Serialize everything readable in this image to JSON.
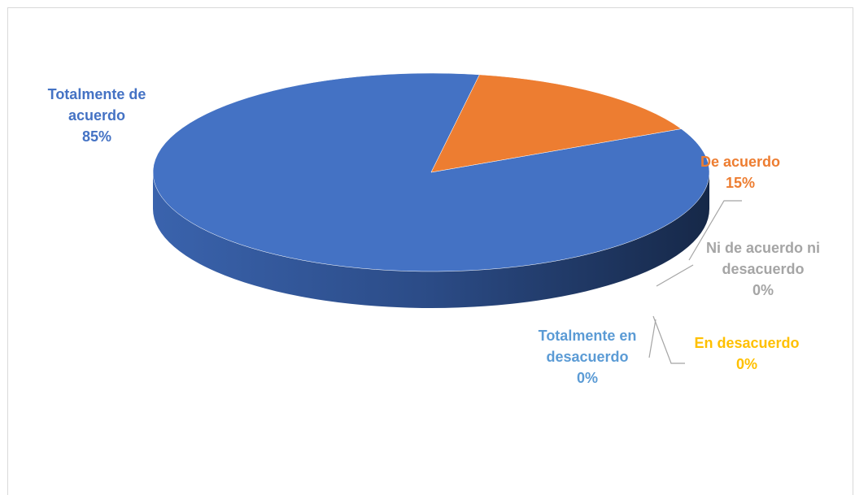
{
  "chart_data": {
    "type": "pie",
    "style": "3d",
    "slices": [
      {
        "name": "Totalmente de acuerdo",
        "label_lines": [
          "Totalmente de",
          "acuerdo"
        ],
        "value": 85,
        "value_label": "85%",
        "color": "#4472c4",
        "label_color": "#4472c4"
      },
      {
        "name": "De acuerdo",
        "label_lines": [
          "De acuerdo"
        ],
        "value": 15,
        "value_label": "15%",
        "color": "#ed7d31",
        "label_color": "#ed7d31"
      },
      {
        "name": "Ni de acuerdo ni desacuerdo",
        "label_lines": [
          "Ni de acuerdo ni",
          "desacuerdo"
        ],
        "value": 0,
        "value_label": "0%",
        "color": "#a5a5a5",
        "label_color": "#a5a5a5"
      },
      {
        "name": "En desacuerdo",
        "label_lines": [
          "En desacuerdo"
        ],
        "value": 0,
        "value_label": "0%",
        "color": "#ffc000",
        "label_color": "#ffc000"
      },
      {
        "name": "Totalmente en desacuerdo",
        "label_lines": [
          "Totalmente en",
          "desacuerdo"
        ],
        "value": 0,
        "value_label": "0%",
        "color": "#5b9bd5",
        "label_color": "#5b9bd5"
      }
    ],
    "legend": "none",
    "data_labels": "category and percentage"
  }
}
